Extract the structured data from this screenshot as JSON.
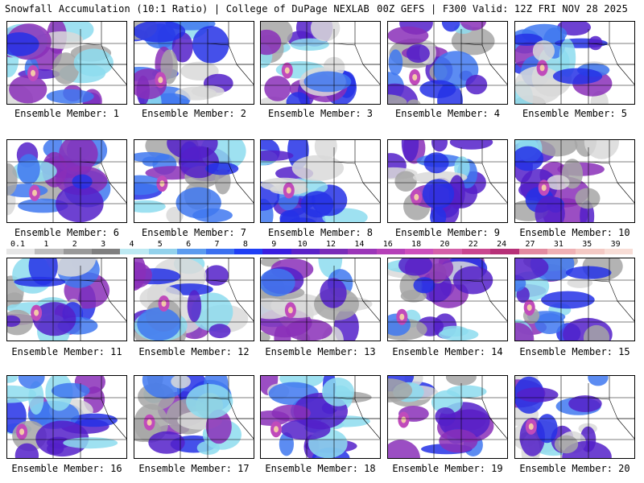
{
  "header": {
    "title": "Snowfall Accumulation (10:1 Ratio) | College of DuPage NEXLAB",
    "run_info": "00Z GEFS | F300 Valid: 12Z FRI NOV 28 2025"
  },
  "colorbar": {
    "labels": [
      "0.1",
      "1",
      "2",
      "3",
      "4",
      "5",
      "6",
      "7",
      "8",
      "9",
      "10",
      "12",
      "14",
      "16",
      "18",
      "20",
      "22",
      "24",
      "27",
      "31",
      "35",
      "39"
    ],
    "colors": [
      "#e6e6e6",
      "#bdbdbd",
      "#999999",
      "#7f7f7f",
      "#bde9f2",
      "#93d2ec",
      "#5b9bef",
      "#3b6ff0",
      "#1f3ef5",
      "#3a1de0",
      "#5b22c8",
      "#7a2cb8",
      "#9b35b8",
      "#b540b8",
      "#cc4fbb",
      "#d45fa8",
      "#c9468f",
      "#b73078",
      "#e28aa0",
      "#efb0b4",
      "#f4c9c4",
      "#f8ddd6"
    ]
  },
  "members": [
    {
      "label": "Ensemble Member: 1"
    },
    {
      "label": "Ensemble Member: 2"
    },
    {
      "label": "Ensemble Member: 3"
    },
    {
      "label": "Ensemble Member: 4"
    },
    {
      "label": "Ensemble Member: 5"
    },
    {
      "label": "Ensemble Member: 6"
    },
    {
      "label": "Ensemble Member: 7"
    },
    {
      "label": "Ensemble Member: 8"
    },
    {
      "label": "Ensemble Member: 9"
    },
    {
      "label": "Ensemble Member: 10"
    },
    {
      "label": "Ensemble Member: 11"
    },
    {
      "label": "Ensemble Member: 12"
    },
    {
      "label": "Ensemble Member: 13"
    },
    {
      "label": "Ensemble Member: 14"
    },
    {
      "label": "Ensemble Member: 15"
    },
    {
      "label": "Ensemble Member: 16"
    },
    {
      "label": "Ensemble Member: 17"
    },
    {
      "label": "Ensemble Member: 18"
    },
    {
      "label": "Ensemble Member: 19"
    },
    {
      "label": "Ensemble Member: 20"
    }
  ]
}
